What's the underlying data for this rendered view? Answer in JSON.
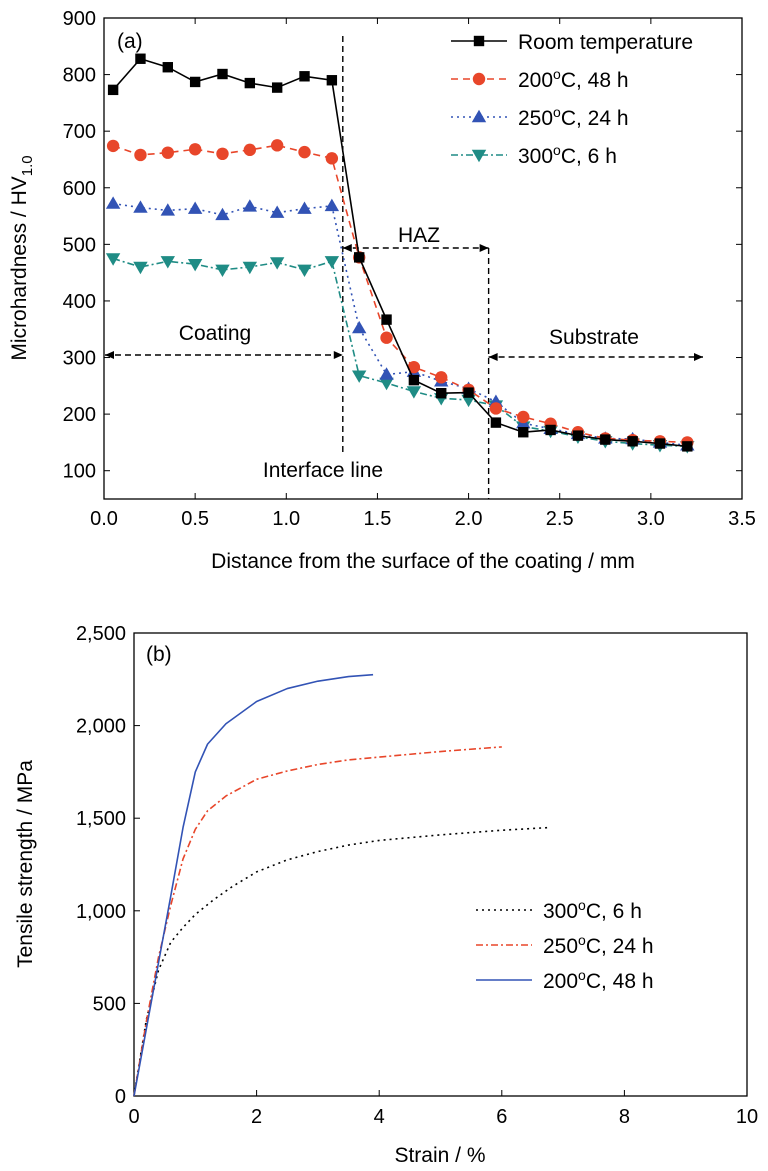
{
  "chart_data": [
    {
      "type": "line",
      "panel_label": "(a)",
      "xlabel": "Distance from the surface of the coating / mm",
      "ylabel": "Microhardness / HV",
      "ylabel_sub": "1.0",
      "xlim": [
        0.0,
        3.5
      ],
      "ylim": [
        50,
        900
      ],
      "xticks": [
        "0.0",
        "0.5",
        "1.0",
        "1.5",
        "2.0",
        "2.5",
        "3.0",
        "3.5"
      ],
      "yticks": [
        "100",
        "200",
        "300",
        "400",
        "500",
        "600",
        "700",
        "800",
        "900"
      ],
      "legend_position": "top-right",
      "x": [
        0.05,
        0.2,
        0.35,
        0.5,
        0.65,
        0.8,
        0.95,
        1.1,
        1.25,
        1.4,
        1.55,
        1.7,
        1.85,
        2.0,
        2.15,
        2.3,
        2.45,
        2.6,
        2.75,
        2.9,
        3.05,
        3.2
      ],
      "series": [
        {
          "name": "Room temperature",
          "color": "#000000",
          "marker": "square",
          "dash": "solid",
          "values": [
            773,
            828,
            813,
            787,
            801,
            785,
            777,
            797,
            790,
            477,
            367,
            260,
            237,
            238,
            185,
            168,
            172,
            162,
            155,
            152,
            148,
            143
          ]
        },
        {
          "name": "200",
          "name_sup": "o",
          "name_tail": "C, 48 h",
          "color": "#e8462a",
          "marker": "circle",
          "dash": "dashed",
          "values": [
            674,
            658,
            662,
            668,
            660,
            667,
            675,
            663,
            652,
            477,
            335,
            283,
            265,
            243,
            210,
            195,
            183,
            168,
            157,
            154,
            152,
            150
          ]
        },
        {
          "name": "250",
          "name_sup": "o",
          "name_tail": "C, 24 h",
          "color": "#3253b5",
          "marker": "triangle-up",
          "dash": "dotted",
          "values": [
            572,
            565,
            560,
            563,
            552,
            567,
            556,
            563,
            568,
            352,
            270,
            275,
            258,
            245,
            222,
            184,
            174,
            165,
            157,
            156,
            150,
            145
          ]
        },
        {
          "name": "300",
          "name_sup": "o",
          "name_tail": "C, 6 h",
          "color": "#1f8c85",
          "marker": "triangle-down",
          "dash": "dashdot",
          "values": [
            475,
            460,
            470,
            465,
            455,
            460,
            468,
            455,
            470,
            268,
            255,
            240,
            228,
            225,
            215,
            178,
            170,
            160,
            152,
            148,
            145,
            143
          ]
        }
      ],
      "annotations": {
        "coating": "Coating",
        "haz": "HAZ",
        "substrate": "Substrate",
        "interface_line": "Interface line"
      }
    },
    {
      "type": "line",
      "panel_label": "(b)",
      "xlabel": "Strain / %",
      "ylabel": "Tensile strength / MPa",
      "xlim": [
        0,
        10
      ],
      "ylim": [
        0,
        2500
      ],
      "xticks": [
        "0",
        "2",
        "4",
        "6",
        "8",
        "10"
      ],
      "yticks": [
        "0",
        "500",
        "1,000",
        "1,500",
        "2,000",
        "2,500"
      ],
      "legend_position": "bottom-right",
      "series": [
        {
          "name": "300",
          "name_sup": "o",
          "name_tail": "C, 6 h",
          "color": "#000000",
          "dash": "dotted",
          "x": [
            0,
            0.2,
            0.4,
            0.6,
            0.8,
            1.0,
            1.3,
            1.6,
            2.0,
            2.5,
            3.0,
            3.5,
            4.0,
            5.0,
            6.0,
            6.8
          ],
          "y": [
            0,
            410,
            680,
            830,
            910,
            980,
            1060,
            1130,
            1210,
            1275,
            1320,
            1355,
            1380,
            1410,
            1435,
            1450
          ]
        },
        {
          "name": "250",
          "name_sup": "o",
          "name_tail": "C, 24 h",
          "color": "#e8462a",
          "dash": "dashdot",
          "x": [
            0,
            0.2,
            0.4,
            0.6,
            0.8,
            1.0,
            1.2,
            1.5,
            2.0,
            2.5,
            3.0,
            3.5,
            4.0,
            5.0,
            6.0
          ],
          "y": [
            0,
            400,
            750,
            1030,
            1280,
            1440,
            1540,
            1620,
            1710,
            1755,
            1790,
            1815,
            1830,
            1860,
            1885
          ]
        },
        {
          "name": "200",
          "name_sup": "o",
          "name_tail": "C, 48 h",
          "color": "#3253b5",
          "dash": "solid",
          "x": [
            0,
            0.2,
            0.4,
            0.6,
            0.8,
            1.0,
            1.2,
            1.5,
            2.0,
            2.5,
            3.0,
            3.5,
            3.9
          ],
          "y": [
            0,
            360,
            720,
            1080,
            1450,
            1750,
            1900,
            2010,
            2130,
            2200,
            2240,
            2265,
            2275
          ]
        }
      ]
    }
  ]
}
